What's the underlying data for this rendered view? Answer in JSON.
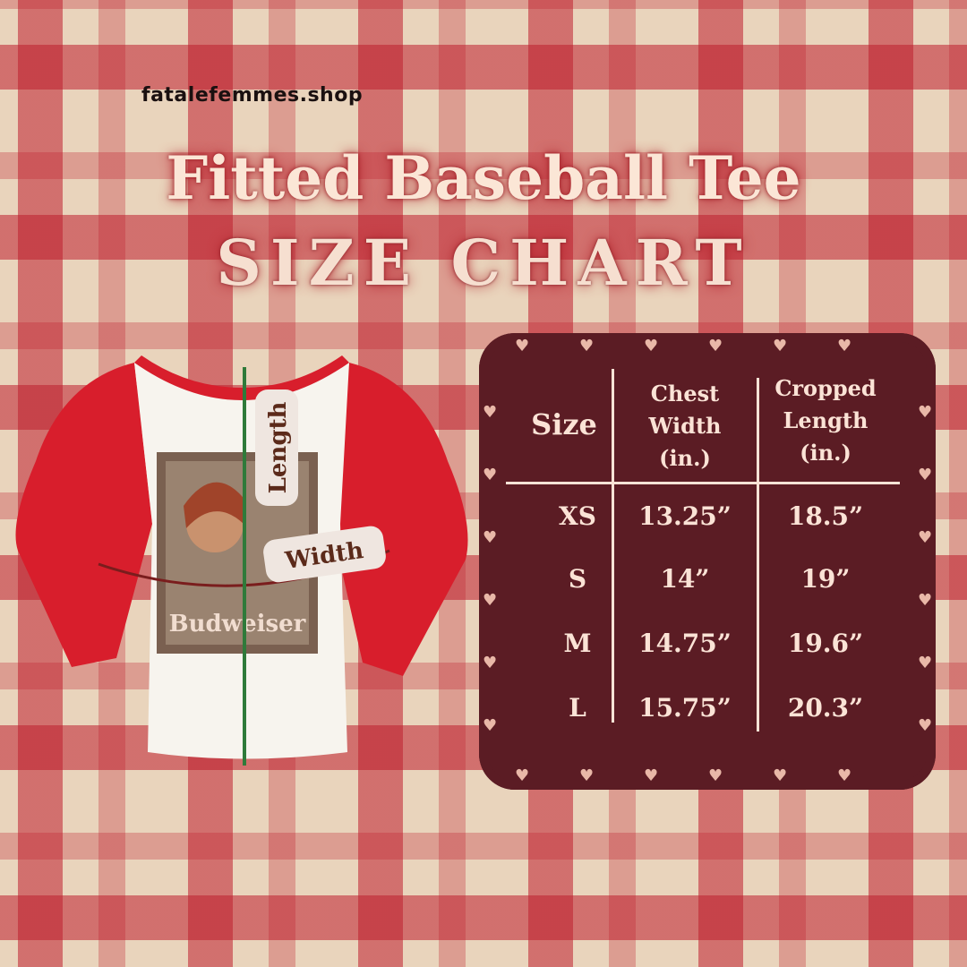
{
  "site": "fatalefemmes.shop",
  "title": "Fitted Baseball Tee",
  "subtitle": "SIZE CHART",
  "shirt": {
    "length_label": "Length",
    "width_label": "Width",
    "print_text": "Budweiser",
    "colors": {
      "sleeve": "#d81e2c",
      "body": "#f7f4ee",
      "measure_line": "#2f7a3a"
    }
  },
  "table": {
    "headers": [
      "Size",
      "Chest Width (in.)",
      "Cropped Length (in.)"
    ],
    "header_lines": [
      [
        "Size"
      ],
      [
        "Chest",
        "Width",
        "(in.)"
      ],
      [
        "Cropped",
        "Length",
        "(in.)"
      ]
    ],
    "rows": [
      {
        "size": "XS",
        "chest": "13.25”",
        "length": "18.5”"
      },
      {
        "size": "S",
        "chest": "14”",
        "length": "19”"
      },
      {
        "size": "M",
        "chest": "14.75”",
        "length": "19.6”"
      },
      {
        "size": "L",
        "chest": "15.75”",
        "length": "20.3”"
      }
    ],
    "colors": {
      "panel": "#5b1c24",
      "text": "#fbe3d6"
    }
  }
}
